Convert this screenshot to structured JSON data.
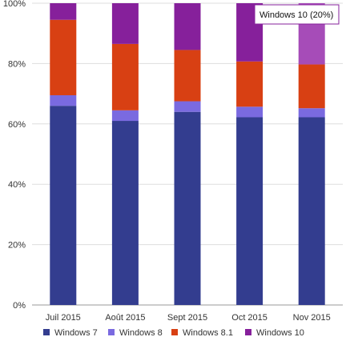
{
  "chart_data": {
    "type": "bar",
    "stacked": true,
    "categories": [
      "Juil 2015",
      "Août 2015",
      "Sept 2015",
      "Oct 2015",
      "Nov 2015"
    ],
    "series": [
      {
        "name": "Windows 7",
        "color": "#333d8f",
        "values": [
          66.0,
          61.0,
          64.0,
          62.2,
          62.2
        ]
      },
      {
        "name": "Windows 8",
        "color": "#7a6ae0",
        "values": [
          3.5,
          3.5,
          3.5,
          3.5,
          3.0
        ]
      },
      {
        "name": "Windows 8.1",
        "color": "#d84013",
        "values": [
          25.0,
          22.0,
          17.0,
          15.0,
          14.5
        ]
      },
      {
        "name": "Windows 10",
        "color": "#86209b",
        "values": [
          5.5,
          13.5,
          15.5,
          19.3,
          20.3
        ]
      }
    ],
    "ylim": [
      0,
      100
    ],
    "yticks": [
      "0%",
      "20%",
      "40%",
      "60%",
      "80%",
      "100%"
    ],
    "ytick_values": [
      0,
      20,
      40,
      60,
      80,
      100
    ],
    "grid": true,
    "legend": "bottom",
    "highlight": {
      "category_index": 4,
      "series_index": 3,
      "color": "#a64cb8"
    },
    "tooltip": {
      "text": "Windows 10 (20%)"
    }
  }
}
